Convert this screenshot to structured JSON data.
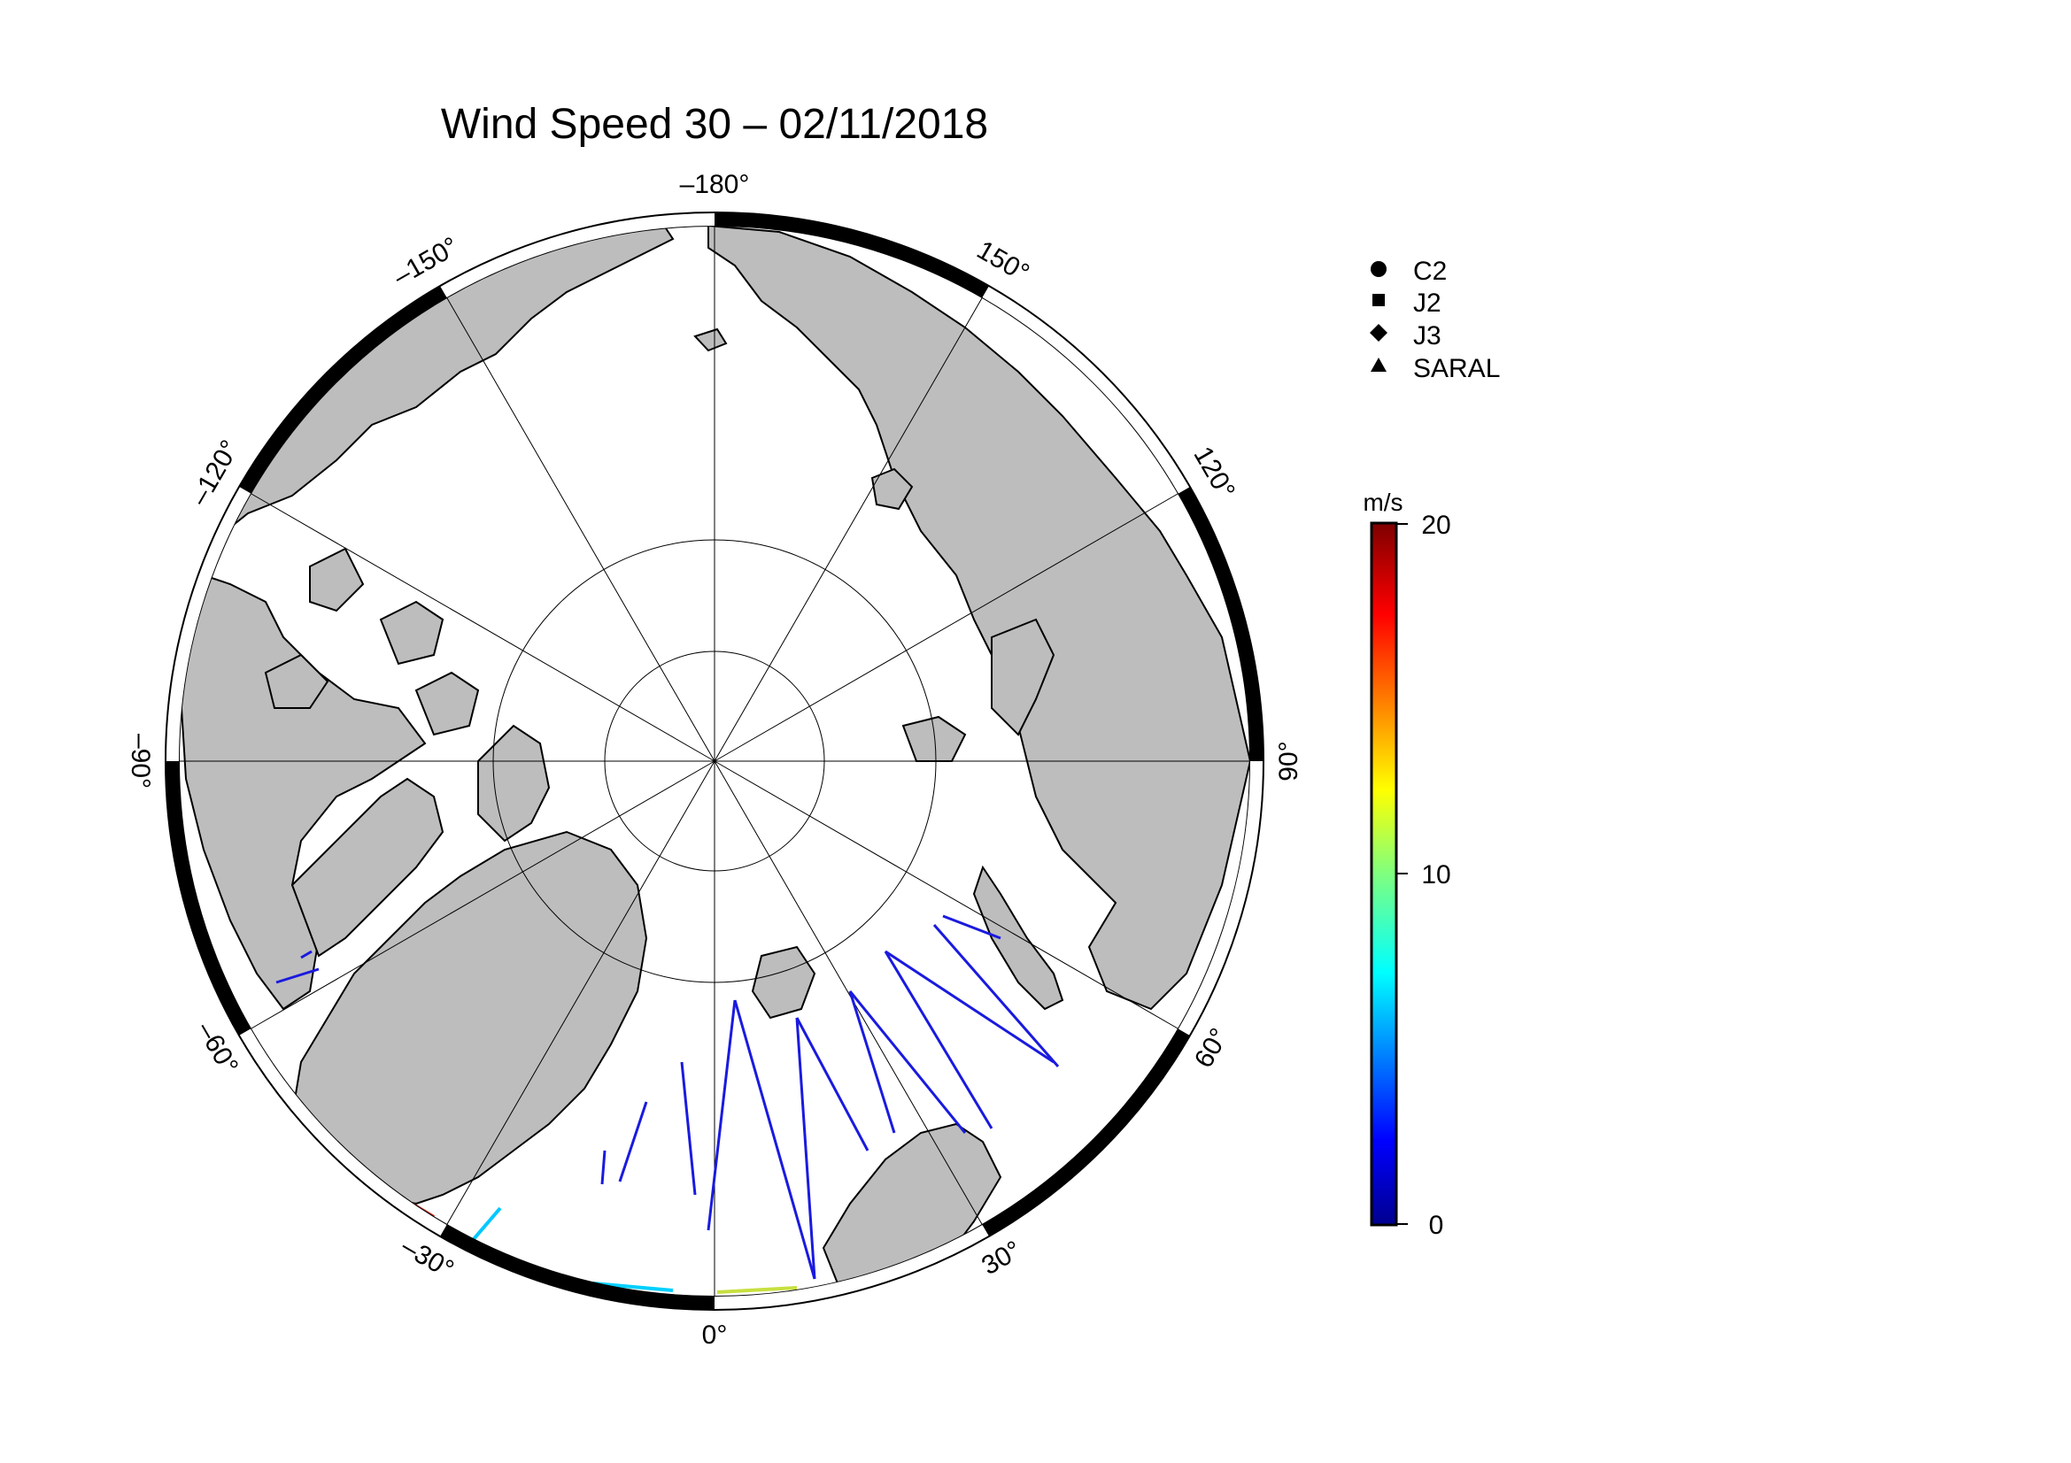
{
  "title": "Wind Speed 30 – 02/11/2018",
  "map": {
    "projection": "north polar stereographic",
    "meridian_labels": [
      {
        "lon": 0,
        "text": "0°"
      },
      {
        "lon": 30,
        "text": "30°"
      },
      {
        "lon": 60,
        "text": "60°"
      },
      {
        "lon": 90,
        "text": "90°"
      },
      {
        "lon": 120,
        "text": "120°"
      },
      {
        "lon": 150,
        "text": "150°"
      },
      {
        "lon": 180,
        "text": "–180°"
      },
      {
        "lon": -150,
        "text": "–150°"
      },
      {
        "lon": -120,
        "text": "–120°"
      },
      {
        "lon": -90,
        "text": "–90°"
      },
      {
        "lon": -60,
        "text": "–60°"
      },
      {
        "lon": -30,
        "text": "–30°"
      }
    ],
    "land_color": "#bdbdbd",
    "ocean_color": "#ffffff"
  },
  "legend": {
    "items": [
      {
        "label": "C2",
        "symbol": "circle-icon"
      },
      {
        "label": "J2",
        "symbol": "square-icon"
      },
      {
        "label": "J3",
        "symbol": "diamond-icon"
      },
      {
        "label": "SARAL",
        "symbol": "triangle-icon"
      }
    ]
  },
  "colorbar": {
    "unit": "m/s",
    "min": 0,
    "max": 20,
    "ticks": [
      "0",
      "10",
      "20"
    ]
  }
}
